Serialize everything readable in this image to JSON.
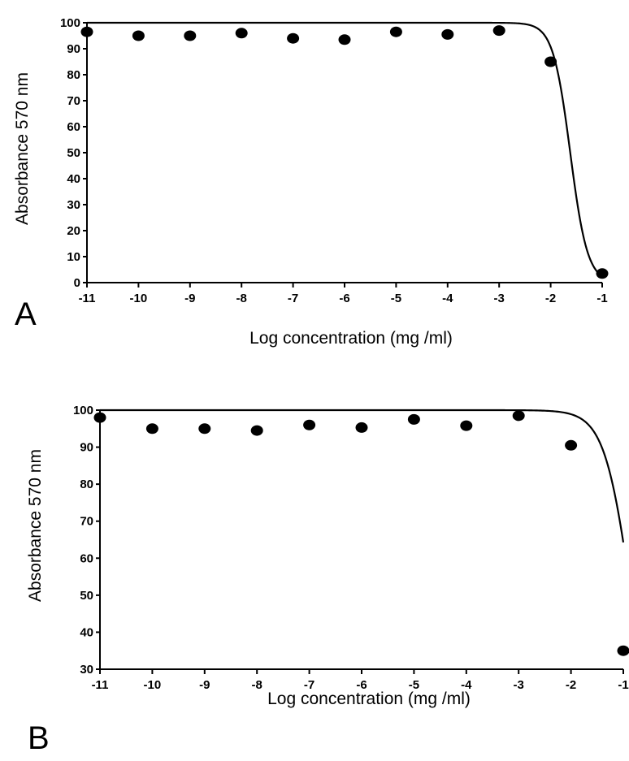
{
  "chart_data": [
    {
      "panel_label": "A",
      "type": "scatter",
      "fit_curve": "sigmoidal dose-response",
      "xlabel": "Log concentration (mg /ml)",
      "ylabel": "Absorbance 570 nm",
      "xlim": [
        -11,
        -1
      ],
      "ylim": [
        0,
        100
      ],
      "xticks": [
        -11,
        -10,
        -9,
        -8,
        -7,
        -6,
        -5,
        -4,
        -3,
        -2,
        -1
      ],
      "yticks": [
        0,
        10,
        20,
        30,
        40,
        50,
        60,
        70,
        80,
        90,
        100
      ],
      "grid": false,
      "x": [
        -11,
        -10,
        -9,
        -8,
        -7,
        -6,
        -5,
        -4,
        -3,
        -2,
        -1
      ],
      "y": [
        96.5,
        95,
        95,
        96,
        94,
        93.5,
        96.5,
        95.5,
        97,
        85,
        3.5
      ],
      "fit": {
        "top": 100,
        "bottom": 0,
        "logEC50": -1.62,
        "hill": -2.6
      }
    },
    {
      "panel_label": "B",
      "type": "scatter",
      "fit_curve": "sigmoidal dose-response",
      "xlabel": "Log concentration (mg /ml)",
      "ylabel": "Absorbance 570 nm",
      "xlim": [
        -11,
        -1
      ],
      "ylim": [
        30,
        100
      ],
      "xticks": [
        -11,
        -10,
        -9,
        -8,
        -7,
        -6,
        -5,
        -4,
        -3,
        -2,
        -1
      ],
      "yticks": [
        30,
        40,
        50,
        60,
        70,
        80,
        90,
        100
      ],
      "grid": false,
      "x": [
        -11,
        -10,
        -9,
        -8,
        -7,
        -6,
        -5,
        -4,
        -3,
        -2,
        -1
      ],
      "y": [
        98,
        95,
        95,
        94.5,
        96,
        95.3,
        97.5,
        95.8,
        98.5,
        90.5,
        35
      ],
      "fit": {
        "top": 100,
        "bottom": 0,
        "logEC50": -0.85,
        "hill": -1.7
      }
    }
  ]
}
